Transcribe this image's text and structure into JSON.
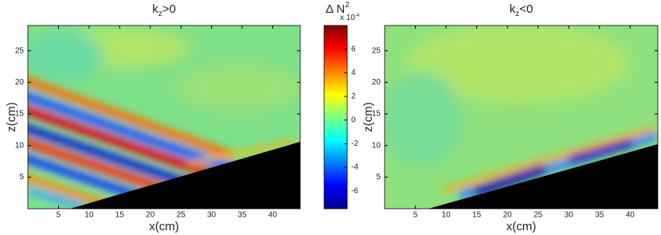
{
  "chart_data": [
    {
      "type": "heatmap",
      "title": [
        "k",
        "z",
        ">0"
      ],
      "xlabel": "x(cm)",
      "ylabel": "z(cm)",
      "xlim": [
        0,
        44.5
      ],
      "xticks": [
        5,
        10,
        15,
        20,
        25,
        30,
        35,
        40
      ],
      "ylim": [
        0,
        29
      ],
      "yticks": [
        5,
        10,
        15,
        20,
        25
      ]
    },
    {
      "type": "colorbar",
      "label": [
        "Δ N",
        "2"
      ],
      "scale": [
        "x 10",
        "-4"
      ],
      "lim": [
        -7.5,
        8
      ],
      "ticks": [
        -6,
        -4,
        -2,
        0,
        2,
        4,
        6
      ],
      "colormap": "jet"
    },
    {
      "type": "heatmap",
      "title": [
        "k",
        "z",
        "<0"
      ],
      "xlabel": "x(cm)",
      "ylabel": "z(cm)",
      "xlim": [
        0,
        44.5
      ],
      "xticks": [
        5,
        10,
        15,
        20,
        25,
        30,
        35,
        40
      ],
      "ylim": [
        0,
        29
      ],
      "yticks": [
        5,
        10,
        15,
        20,
        25
      ]
    }
  ]
}
